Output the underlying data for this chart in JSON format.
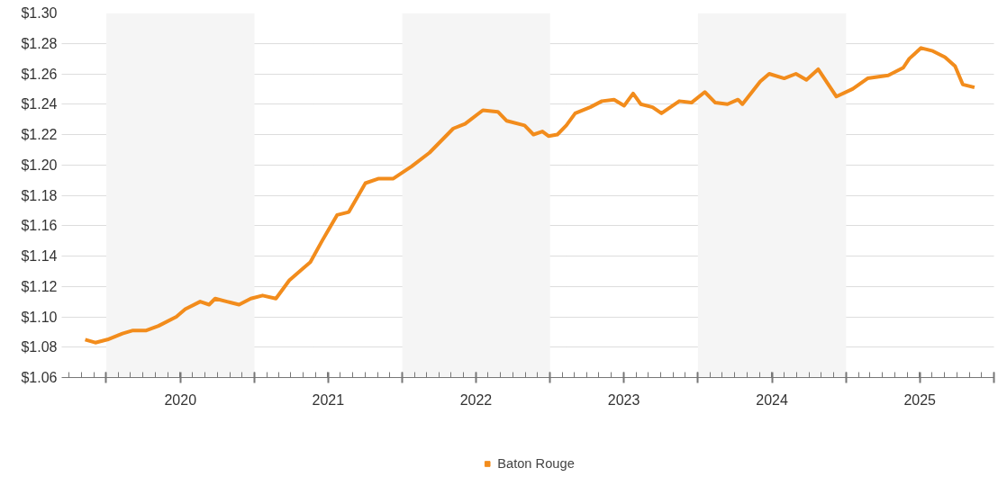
{
  "chart_data": {
    "type": "line",
    "x": [
      "2019-11-10",
      "2019-12-05",
      "2020-01-04",
      "2020-02-10",
      "2020-03-07",
      "2020-04-09",
      "2020-05-09",
      "2020-06-22",
      "2020-07-14",
      "2020-08-20",
      "2020-09-11",
      "2020-09-26",
      "2020-10-25",
      "2020-11-24",
      "2020-12-23",
      "2021-01-21",
      "2021-02-23",
      "2021-03-28",
      "2021-04-27",
      "2021-05-19",
      "2021-06-17",
      "2021-07-24",
      "2021-08-22",
      "2021-10-02",
      "2021-11-04",
      "2021-12-10",
      "2022-01-24",
      "2022-03-09",
      "2022-05-07",
      "2022-06-05",
      "2022-07-19",
      "2022-08-25",
      "2022-09-16",
      "2022-10-30",
      "2022-11-21",
      "2022-12-13",
      "2022-12-28",
      "2023-01-19",
      "2023-02-10",
      "2023-03-04",
      "2023-04-10",
      "2023-05-09",
      "2023-06-08",
      "2023-07-03",
      "2023-07-25",
      "2023-08-13",
      "2023-09-11",
      "2023-10-03",
      "2023-11-16",
      "2023-12-16",
      "2024-01-18",
      "2024-02-13",
      "2024-03-14",
      "2024-04-09",
      "2024-04-20",
      "2024-06-03",
      "2024-06-25",
      "2024-08-01",
      "2024-08-30",
      "2024-09-25",
      "2024-10-24",
      "2024-12-08",
      "2025-01-17",
      "2025-02-23",
      "2025-04-15",
      "2025-05-22",
      "2025-06-06",
      "2025-07-05",
      "2025-08-03",
      "2025-09-02",
      "2025-09-27",
      "2025-10-16",
      "2025-11-14"
    ],
    "series": [
      {
        "name": "Baton Rouge",
        "color": "#f28c1c",
        "values": [
          1.085,
          1.083,
          1.085,
          1.089,
          1.091,
          1.091,
          1.094,
          1.1,
          1.105,
          1.11,
          1.108,
          1.112,
          1.11,
          1.108,
          1.112,
          1.114,
          1.112,
          1.124,
          1.131,
          1.136,
          1.15,
          1.167,
          1.169,
          1.188,
          1.191,
          1.191,
          1.199,
          1.208,
          1.224,
          1.227,
          1.236,
          1.235,
          1.229,
          1.226,
          1.22,
          1.222,
          1.219,
          1.22,
          1.226,
          1.234,
          1.238,
          1.242,
          1.243,
          1.239,
          1.247,
          1.24,
          1.238,
          1.234,
          1.242,
          1.241,
          1.248,
          1.241,
          1.24,
          1.243,
          1.24,
          1.255,
          1.26,
          1.257,
          1.26,
          1.256,
          1.263,
          1.245,
          1.25,
          1.257,
          1.259,
          1.264,
          1.27,
          1.277,
          1.275,
          1.271,
          1.265,
          1.253,
          1.251
        ]
      }
    ],
    "xlim": [
      "2019-09-13",
      "2026-01-01"
    ],
    "xticks": [
      {
        "value": "2020-01-01",
        "label": null
      },
      {
        "value": "2020-07-02",
        "label": "2020"
      },
      {
        "value": "2021-01-01",
        "label": null
      },
      {
        "value": "2021-07-02",
        "label": "2021"
      },
      {
        "value": "2022-01-01",
        "label": null
      },
      {
        "value": "2022-07-02",
        "label": "2022"
      },
      {
        "value": "2023-01-01",
        "label": null
      },
      {
        "value": "2023-07-02",
        "label": "2023"
      },
      {
        "value": "2024-01-01",
        "label": null
      },
      {
        "value": "2024-07-02",
        "label": "2024"
      },
      {
        "value": "2025-01-01",
        "label": null
      },
      {
        "value": "2025-07-02",
        "label": "2025"
      },
      {
        "value": "2026-01-01",
        "label": null
      }
    ],
    "ylim": [
      1.06,
      1.3
    ],
    "yticks": [
      {
        "value": 1.06,
        "label": "$1.06"
      },
      {
        "value": 1.08,
        "label": "$1.08"
      },
      {
        "value": 1.1,
        "label": "$1.10"
      },
      {
        "value": 1.12,
        "label": "$1.12"
      },
      {
        "value": 1.14,
        "label": "$1.14"
      },
      {
        "value": 1.16,
        "label": "$1.16"
      },
      {
        "value": 1.18,
        "label": "$1.18"
      },
      {
        "value": 1.2,
        "label": "$1.20"
      },
      {
        "value": 1.22,
        "label": "$1.22"
      },
      {
        "value": 1.24,
        "label": "$1.24"
      },
      {
        "value": 1.26,
        "label": "$1.26"
      },
      {
        "value": 1.28,
        "label": "$1.28"
      },
      {
        "value": 1.3,
        "label": "$1.30"
      }
    ],
    "bands": [
      {
        "axis": "x",
        "from": "2020-01-01",
        "to": "2021-01-01",
        "color": "#f5f5f5"
      },
      {
        "axis": "x",
        "from": "2022-01-01",
        "to": "2023-01-01",
        "color": "#f5f5f5"
      },
      {
        "axis": "x",
        "from": "2024-01-01",
        "to": "2025-01-01",
        "color": "#f5f5f5"
      }
    ],
    "grid": "y",
    "legend": "bottom",
    "marker": "none",
    "line_style": "solid"
  }
}
